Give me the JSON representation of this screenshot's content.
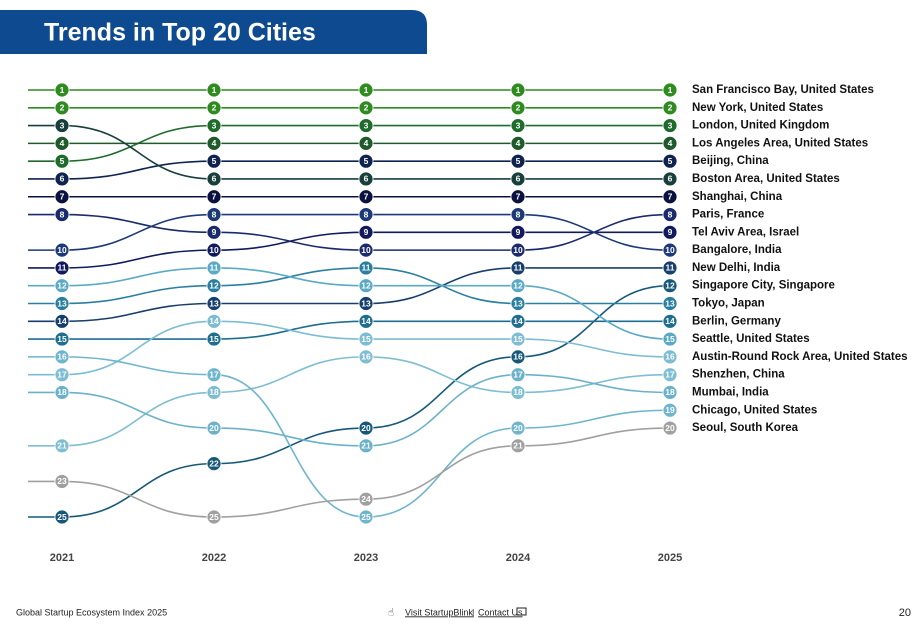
{
  "chart_data": {
    "type": "bump",
    "title": "Trends in Top 20 Cities",
    "x": [
      "2021",
      "2022",
      "2023",
      "2024",
      "2025"
    ],
    "ylim": [
      1,
      25
    ],
    "series": [
      {
        "name": "San Francisco Bay, United States",
        "color": "#2f8a1f",
        "values": [
          1,
          1,
          1,
          1,
          1
        ]
      },
      {
        "name": "New York, United States",
        "color": "#2f8a1f",
        "values": [
          2,
          2,
          2,
          2,
          2
        ]
      },
      {
        "name": "London, United Kingdom",
        "color": "#1e6b2c",
        "values": [
          5,
          3,
          3,
          3,
          3
        ]
      },
      {
        "name": "Los Angeles Area, United States",
        "color": "#1e5a2c",
        "values": [
          4,
          4,
          4,
          4,
          4
        ]
      },
      {
        "name": "Beijing, China",
        "color": "#0f2350",
        "values": [
          6,
          5,
          5,
          5,
          5
        ]
      },
      {
        "name": "Boston Area, United States",
        "color": "#173f3b",
        "values": [
          3,
          6,
          6,
          6,
          6
        ]
      },
      {
        "name": "Shanghai, China",
        "color": "#0b1240",
        "values": [
          7,
          7,
          7,
          7,
          7
        ]
      },
      {
        "name": "Paris, France",
        "color": "#1b2a6b",
        "values": [
          8,
          9,
          10,
          10,
          8
        ]
      },
      {
        "name": "Tel Aviv Area, Israel",
        "color": "#101a5c",
        "values": [
          11,
          10,
          9,
          9,
          9
        ]
      },
      {
        "name": "Bangalore, India",
        "color": "#1d3a78",
        "values": [
          10,
          8,
          8,
          8,
          10
        ]
      },
      {
        "name": "New Delhi, India",
        "color": "#173e6c",
        "values": [
          14,
          13,
          13,
          11,
          11
        ]
      },
      {
        "name": "Singapore City, Singapore",
        "color": "#17587a",
        "values": [
          25,
          22,
          20,
          16,
          12
        ]
      },
      {
        "name": "Tokyo, Japan",
        "color": "#2a7fa0",
        "values": [
          13,
          12,
          11,
          13,
          13
        ]
      },
      {
        "name": "Berlin, Germany",
        "color": "#1e6e90",
        "values": [
          15,
          15,
          14,
          14,
          14
        ]
      },
      {
        "name": "Seattle, United States",
        "color": "#5aa9c5",
        "values": [
          12,
          11,
          12,
          12,
          15
        ]
      },
      {
        "name": "Austin-Round Rock Area, United States",
        "color": "#7dbcd3",
        "values": [
          17,
          14,
          15,
          15,
          16
        ]
      },
      {
        "name": "Shenzhen, China",
        "color": "#7fbdd2",
        "values": [
          21,
          18,
          16,
          18,
          17
        ]
      },
      {
        "name": "Mumbai, India",
        "color": "#6cb1ca",
        "values": [
          18,
          20,
          21,
          17,
          18
        ]
      },
      {
        "name": "Chicago, United States",
        "color": "#6fb5cd",
        "values": [
          16,
          17,
          25,
          20,
          19
        ]
      },
      {
        "name": "Seoul, South Korea",
        "color": "#a0a0a0",
        "values": [
          23,
          25,
          24,
          21,
          20
        ]
      }
    ]
  },
  "footer": {
    "left": "Global Startup Ecosystem Index 2025",
    "link1": "Visit StartupBlink",
    "separator": "|",
    "link2": "Contact Us",
    "page": "20"
  }
}
